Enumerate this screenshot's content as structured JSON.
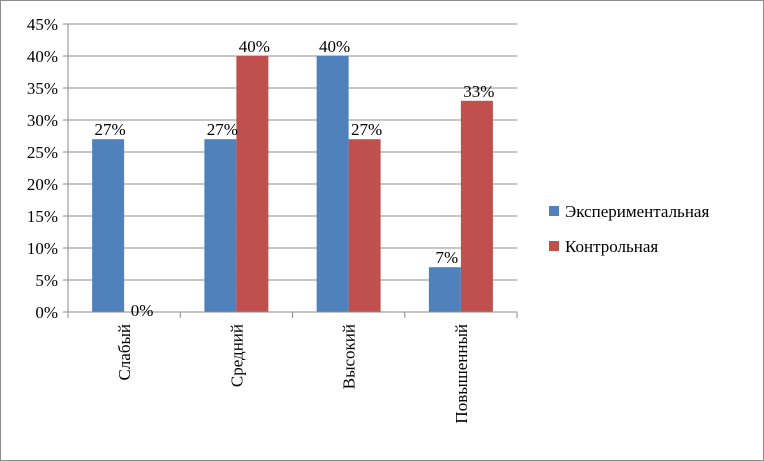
{
  "chart_data": {
    "type": "bar",
    "categories": [
      "Слабый",
      "Средний",
      "Высокий",
      "Повышенный"
    ],
    "series": [
      {
        "name": "Экспериментальная",
        "values": [
          27,
          27,
          40,
          7
        ],
        "labels": [
          "27%",
          "27%",
          "40%",
          "7%"
        ],
        "color": "#4f81bd"
      },
      {
        "name": "Контрольная",
        "values": [
          0,
          40,
          27,
          33
        ],
        "labels": [
          "0%",
          "40%",
          "27%",
          "33%"
        ],
        "color": "#c0504d"
      }
    ],
    "yticks": [
      "0%",
      "5%",
      "10%",
      "15%",
      "20%",
      "25%",
      "30%",
      "35%",
      "40%",
      "45%"
    ],
    "ylim": [
      0,
      45
    ],
    "grid": true,
    "legend_position": "right"
  }
}
